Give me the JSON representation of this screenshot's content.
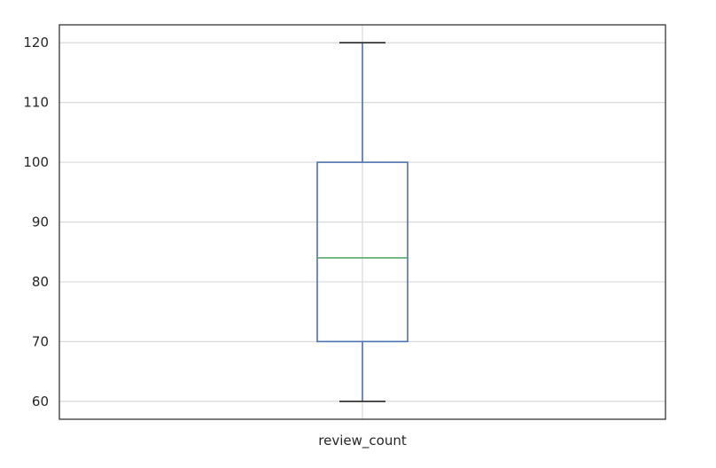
{
  "chart_data": {
    "type": "box",
    "title": "",
    "xlabel": "",
    "ylabel": "",
    "categories": [
      "review_count"
    ],
    "boxes": [
      {
        "name": "review_count",
        "whisker_low": 60,
        "q1": 70,
        "median": 84,
        "q3": 100,
        "whisker_high": 120
      }
    ],
    "ylim": [
      57,
      123
    ],
    "yticks": [
      60,
      70,
      80,
      90,
      100,
      110,
      120
    ],
    "grid": true,
    "colors": {
      "box": "#4c72b0",
      "median": "#55a868",
      "whisker_cap": "#262626",
      "grid": "#d9d9d9",
      "frame": "#262626",
      "text": "#262626"
    }
  }
}
